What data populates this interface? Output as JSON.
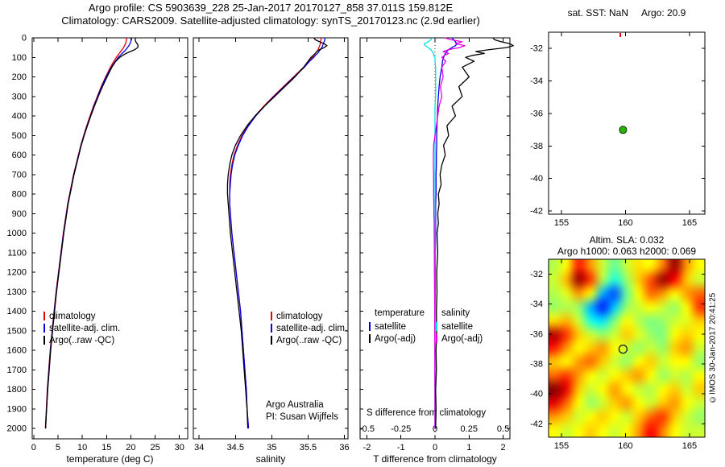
{
  "header": {
    "line1": "Argo profile: CS 5903639_228 25-Jan-2017 20170127_858 37.011S 159.812E",
    "line2": "Climatology: CARS2009. Satellite-adjusted climatology: synTS_20170123.nc (2.9d earlier)"
  },
  "chart_data": [
    {
      "id": "temperature_profile",
      "type": "line",
      "xlabel": "temperature (deg C)",
      "xlim": [
        -0.3,
        31.7
      ],
      "xticks": [
        0,
        5,
        10,
        15,
        20,
        25,
        30
      ],
      "xtick_labels": [
        "0",
        "5",
        "10",
        "15",
        "20",
        "25",
        "30"
      ],
      "ylim": [
        0,
        2053
      ],
      "yticks": [
        0,
        100,
        200,
        300,
        400,
        500,
        600,
        700,
        800,
        900,
        1000,
        1100,
        1200,
        1300,
        1400,
        1500,
        1600,
        1700,
        1800,
        1900,
        2000
      ],
      "depths": [
        0,
        10,
        20,
        30,
        40,
        50,
        60,
        70,
        80,
        90,
        100,
        120,
        150,
        200,
        250,
        300,
        350,
        400,
        450,
        500,
        550,
        600,
        650,
        700,
        750,
        800,
        850,
        900,
        950,
        1000,
        1100,
        1200,
        1300,
        1400,
        1500,
        1600,
        1700,
        1800,
        1900,
        2000
      ],
      "legend": [
        {
          "label": "climatology",
          "color": "#e60000"
        },
        {
          "label": "satellite-adj. clim.",
          "color": "#0000e6"
        },
        {
          "label": "Argo(..raw -QC)",
          "color": "#000000"
        }
      ],
      "series": [
        {
          "name": "climatology",
          "color": "#e60000",
          "x": [
            19.2,
            19.1,
            19.0,
            18.9,
            18.7,
            18.5,
            18.2,
            17.9,
            17.6,
            17.3,
            17.0,
            16.5,
            15.8,
            14.8,
            13.9,
            13.1,
            12.3,
            11.6,
            10.9,
            10.3,
            9.7,
            9.2,
            8.7,
            8.2,
            7.8,
            7.4,
            7.0,
            6.7,
            6.4,
            6.1,
            5.6,
            5.1,
            4.6,
            4.2,
            3.8,
            3.4,
            3.1,
            2.8,
            2.6,
            2.4
          ]
        },
        {
          "name": "satellite-adj-climatology",
          "color": "#0000e6",
          "x": [
            20.2,
            20.1,
            20.0,
            19.8,
            19.6,
            19.3,
            19.0,
            18.6,
            18.2,
            17.8,
            17.4,
            16.8,
            16.0,
            14.9,
            14.0,
            13.2,
            12.4,
            11.7,
            11.0,
            10.35,
            9.75,
            9.25,
            8.75,
            8.25,
            7.85,
            7.45,
            7.05,
            6.75,
            6.45,
            6.15,
            5.65,
            5.15,
            4.65,
            4.25,
            3.85,
            3.45,
            3.15,
            2.85,
            2.65,
            2.45
          ]
        },
        {
          "name": "argo-raw",
          "color": "#000000",
          "x": [
            20.9,
            20.9,
            21.0,
            21.3,
            21.5,
            21.4,
            20.8,
            19.9,
            19.0,
            18.3,
            17.7,
            16.9,
            16.1,
            15.1,
            14.15,
            13.3,
            12.5,
            11.75,
            11.05,
            10.4,
            9.8,
            9.3,
            8.8,
            8.3,
            7.9,
            7.5,
            7.1,
            6.8,
            6.5,
            6.2,
            5.7,
            5.2,
            4.7,
            4.3,
            3.9,
            3.5,
            3.2,
            2.9,
            2.65,
            2.45
          ]
        }
      ]
    },
    {
      "id": "salinity_profile",
      "type": "line",
      "xlabel": "salinity",
      "xlim": [
        33.92,
        36.05
      ],
      "xticks": [
        34,
        34.5,
        35,
        35.5,
        36
      ],
      "xtick_labels": [
        "34",
        "34.5",
        "35",
        "35.5",
        "36"
      ],
      "ylim": [
        0,
        2053
      ],
      "yticks": [
        0,
        100,
        200,
        300,
        400,
        500,
        600,
        700,
        800,
        900,
        1000,
        1100,
        1200,
        1300,
        1400,
        1500,
        1600,
        1700,
        1800,
        1900,
        2000
      ],
      "depths": [
        0,
        10,
        20,
        30,
        40,
        50,
        60,
        70,
        80,
        90,
        100,
        120,
        150,
        200,
        250,
        300,
        350,
        400,
        450,
        500,
        550,
        600,
        650,
        700,
        750,
        800,
        850,
        900,
        950,
        1000,
        1100,
        1200,
        1300,
        1400,
        1500,
        1600,
        1700,
        1800,
        1900,
        2000
      ],
      "annotations": [
        "Argo Australia",
        "PI: Susan Wijffels"
      ],
      "legend": [
        {
          "label": "climatology",
          "color": "#e60000"
        },
        {
          "label": "satellite-adj. clim.",
          "color": "#0000e6"
        },
        {
          "label": "Argo(..raw -QC)",
          "color": "#000000"
        }
      ],
      "series": [
        {
          "name": "climatology",
          "color": "#e60000",
          "x": [
            35.68,
            35.68,
            35.67,
            35.67,
            35.66,
            35.65,
            35.64,
            35.62,
            35.6,
            35.58,
            35.56,
            35.51,
            35.44,
            35.3,
            35.16,
            35.02,
            34.89,
            34.77,
            34.67,
            34.59,
            34.53,
            34.48,
            34.45,
            34.43,
            34.42,
            34.42,
            34.42,
            34.43,
            34.44,
            34.45,
            34.48,
            34.51,
            34.54,
            34.57,
            34.59,
            34.61,
            34.63,
            34.65,
            34.66,
            34.68
          ]
        },
        {
          "name": "satellite-adj-climatology",
          "color": "#0000e6",
          "x": [
            35.73,
            35.73,
            35.72,
            35.71,
            35.7,
            35.69,
            35.67,
            35.65,
            35.63,
            35.6,
            35.58,
            35.52,
            35.45,
            35.31,
            35.17,
            35.03,
            34.9,
            34.78,
            34.68,
            34.6,
            34.54,
            34.49,
            34.46,
            34.44,
            34.43,
            34.42,
            34.42,
            34.43,
            34.44,
            34.45,
            34.48,
            34.51,
            34.54,
            34.57,
            34.59,
            34.61,
            34.63,
            34.65,
            34.66,
            34.68
          ]
        },
        {
          "name": "argo-raw",
          "color": "#000000",
          "x": [
            35.58,
            35.6,
            35.66,
            35.72,
            35.76,
            35.72,
            35.66,
            35.62,
            35.6,
            35.57,
            35.54,
            35.5,
            35.44,
            35.32,
            35.18,
            35.04,
            34.9,
            34.77,
            34.66,
            34.57,
            34.5,
            34.45,
            34.42,
            34.4,
            34.39,
            34.39,
            34.4,
            34.41,
            34.42,
            34.43,
            34.46,
            34.49,
            34.52,
            34.55,
            34.58,
            34.6,
            34.62,
            34.64,
            34.66,
            34.67
          ]
        }
      ]
    },
    {
      "id": "difference_profile",
      "type": "line",
      "xlabel_bottom": "T difference from climatology",
      "xlabel_inner": "S difference from climatology",
      "xlim": [
        -2.2,
        2.2
      ],
      "xticks": [
        -2,
        -1,
        0,
        1,
        2
      ],
      "xtick_labels": [
        "-2",
        "-1",
        "0",
        "1",
        "2"
      ],
      "s_ticks": [
        -0.5,
        -0.25,
        0,
        0.25,
        0.5
      ],
      "s_tick_labels": [
        "-0.5",
        "-0.25",
        "0",
        "0.25",
        "0.5"
      ],
      "s_scale": 4,
      "zero_line": true,
      "ylim": [
        0,
        2053
      ],
      "yticks": [
        0,
        100,
        200,
        300,
        400,
        500,
        600,
        700,
        800,
        900,
        1000,
        1100,
        1200,
        1300,
        1400,
        1500,
        1600,
        1700,
        1800,
        1900,
        2000
      ],
      "depths": [
        0,
        10,
        20,
        30,
        40,
        50,
        60,
        70,
        80,
        90,
        100,
        120,
        150,
        200,
        250,
        300,
        350,
        400,
        450,
        500,
        550,
        600,
        650,
        700,
        750,
        800,
        850,
        900,
        950,
        1000,
        1100,
        1200,
        1300,
        1400,
        1500,
        1600,
        1700,
        1800,
        1900,
        2000
      ],
      "legend_groups": [
        {
          "header": "temperature",
          "items": [
            {
              "label": "satellite",
              "color": "#0000e6"
            },
            {
              "label": "Argo(-adj)",
              "color": "#000000"
            }
          ]
        },
        {
          "header": "salinity",
          "items": [
            {
              "label": "satellite",
              "color": "#00e0e0"
            },
            {
              "label": "Argo(-adj)",
              "color": "#e600e6"
            }
          ]
        }
      ],
      "series": [
        {
          "name": "satellite-T",
          "axis": "T",
          "color": "#0000e6",
          "x": [
            0.5,
            0.55,
            0.6,
            0.65,
            0.6,
            0.5,
            0.4,
            0.35,
            0.3,
            0.28,
            0.25,
            0.22,
            0.2,
            0.15,
            0.12,
            0.1,
            0.08,
            0.07,
            0.06,
            0.05,
            0.05,
            0.04,
            0.04,
            0.03,
            0.03,
            0.03,
            0.02,
            0.02,
            0.02,
            0.02,
            0.01,
            0.01,
            0.01,
            0.0,
            0.0,
            0.0,
            0.0,
            0.0,
            0.0,
            0.0
          ]
        },
        {
          "name": "satellite-S",
          "axis": "S",
          "color": "#00e0e0",
          "x": [
            -0.02,
            -0.03,
            -0.05,
            -0.08,
            -0.07,
            -0.05,
            -0.03,
            -0.02,
            -0.01,
            -0.01,
            0.0,
            0.0,
            0.005,
            0.005,
            0.005,
            0.005,
            0.0,
            0.0,
            0.0,
            0.0,
            0.0,
            0.0,
            0.0,
            0.0,
            0.0,
            0.0,
            0.0,
            0.0,
            0.0,
            0.0,
            0.0,
            0.0,
            0.0,
            0.0,
            0.0,
            0.0,
            0.0,
            0.0,
            0.0,
            0.0
          ]
        },
        {
          "name": "argo-S",
          "axis": "S",
          "color": "#e600e6",
          "x": [
            0.07,
            0.12,
            0.2,
            0.15,
            0.22,
            0.18,
            0.1,
            0.06,
            0.1,
            0.07,
            0.05,
            0.08,
            0.05,
            0.06,
            0.04,
            0.05,
            0.03,
            0.02,
            0.01,
            0.0,
            -0.01,
            -0.012,
            -0.012,
            -0.01,
            -0.01,
            -0.01,
            -0.008,
            -0.008,
            -0.006,
            -0.006,
            -0.005,
            -0.004,
            -0.003,
            -0.002,
            -0.002,
            -0.001,
            -0.001,
            0.0,
            0.0,
            0.0
          ]
        },
        {
          "name": "argo-T",
          "axis": "T",
          "color": "#000000",
          "x": [
            1.7,
            1.75,
            1.95,
            2.2,
            2.3,
            2.1,
            1.6,
            1.2,
            1.45,
            1.1,
            0.9,
            1.15,
            0.8,
            1.0,
            0.7,
            0.8,
            0.5,
            0.6,
            0.35,
            0.4,
            0.25,
            0.3,
            0.2,
            0.15,
            0.18,
            0.1,
            0.12,
            0.08,
            0.1,
            0.06,
            0.08,
            0.05,
            0.06,
            0.04,
            0.05,
            0.03,
            0.04,
            0.02,
            0.03,
            0.02
          ]
        }
      ]
    },
    {
      "id": "location_map",
      "type": "scatter",
      "title_sst": "sat. SST: NaN",
      "title_argo": "Argo: 20.9",
      "xlim": [
        154,
        166.2
      ],
      "xticks": [
        155,
        160,
        165
      ],
      "xtick_labels": [
        "155",
        "160",
        "165"
      ],
      "ylim": [
        -31,
        -42.2
      ],
      "yticks": [
        -32,
        -34,
        -36,
        -38,
        -40,
        -42
      ],
      "marker": {
        "lon": 159.812,
        "lat": -37.011,
        "color": "#2db200",
        "edge": "#003300"
      },
      "top_mark": {
        "lon": 159.6,
        "color": "#e60000"
      }
    },
    {
      "id": "sla_map",
      "type": "heatmap",
      "title1": "Altim. SLA: 0.032",
      "title2": "Argo h1000: 0.063 h2000: 0.069",
      "watermark": "©IMOS 30-Jan-2017 20:41:25",
      "xlim": [
        154,
        166.2
      ],
      "xticks": [
        155,
        160,
        165
      ],
      "xtick_labels": [
        "155",
        "160",
        "165"
      ],
      "ylim": [
        -31,
        -42.9
      ],
      "yticks": [
        -32,
        -34,
        -36,
        -38,
        -40,
        -42
      ],
      "marker": {
        "lon": 159.812,
        "lat": -37.011,
        "edge": "#1a1a1a"
      },
      "field": {
        "vmin": -1,
        "vmax": 1,
        "values": [
          [
            0.1,
            0.25,
            0.7,
            0.45,
            0.15,
            -0.05,
            0.15,
            0.3,
            0.25,
            0.5,
            0.95,
            0.45,
            0.25
          ],
          [
            0.15,
            0.4,
            0.95,
            0.65,
            0.1,
            -0.2,
            0.05,
            0.35,
            0.6,
            0.95,
            0.75,
            0.35,
            0.15
          ],
          [
            0.1,
            0.2,
            0.45,
            0.25,
            -0.4,
            -0.6,
            -0.05,
            0.25,
            0.55,
            0.45,
            0.25,
            0.45,
            0.55
          ],
          [
            0.05,
            0.1,
            0.05,
            -0.4,
            -0.7,
            -0.35,
            0.05,
            0.15,
            0.25,
            0.15,
            0.05,
            0.25,
            0.65
          ],
          [
            0.3,
            0.4,
            0.15,
            -0.2,
            -0.3,
            0.0,
            0.25,
            0.1,
            0.0,
            0.05,
            0.15,
            0.2,
            0.35
          ],
          [
            0.9,
            0.65,
            0.35,
            0.15,
            0.05,
            0.15,
            0.35,
            0.2,
            0.05,
            0.0,
            0.25,
            0.35,
            0.25
          ],
          [
            0.7,
            0.45,
            0.25,
            0.35,
            0.45,
            0.25,
            0.15,
            0.05,
            0.15,
            0.05,
            0.35,
            0.45,
            0.15
          ],
          [
            0.35,
            0.25,
            0.45,
            0.55,
            0.35,
            0.15,
            0.05,
            0.25,
            0.35,
            0.15,
            0.25,
            0.25,
            0.05
          ],
          [
            0.55,
            0.65,
            0.45,
            0.25,
            0.15,
            0.25,
            0.35,
            0.45,
            0.25,
            0.05,
            0.15,
            0.1,
            0.25
          ],
          [
            1.0,
            0.8,
            0.35,
            0.15,
            0.25,
            0.45,
            0.25,
            0.15,
            0.1,
            0.25,
            0.35,
            0.15,
            0.35
          ],
          [
            0.8,
            0.55,
            0.25,
            0.05,
            0.15,
            0.35,
            0.45,
            0.25,
            0.15,
            0.35,
            0.45,
            0.25,
            0.15
          ],
          [
            0.45,
            0.35,
            0.15,
            0.25,
            0.35,
            0.25,
            0.15,
            0.35,
            0.55,
            0.65,
            0.35,
            0.15,
            0.05
          ],
          [
            0.25,
            0.15,
            0.25,
            0.35,
            0.25,
            0.15,
            0.25,
            0.45,
            0.75,
            0.5,
            0.25,
            0.15,
            0.15
          ]
        ]
      }
    }
  ]
}
